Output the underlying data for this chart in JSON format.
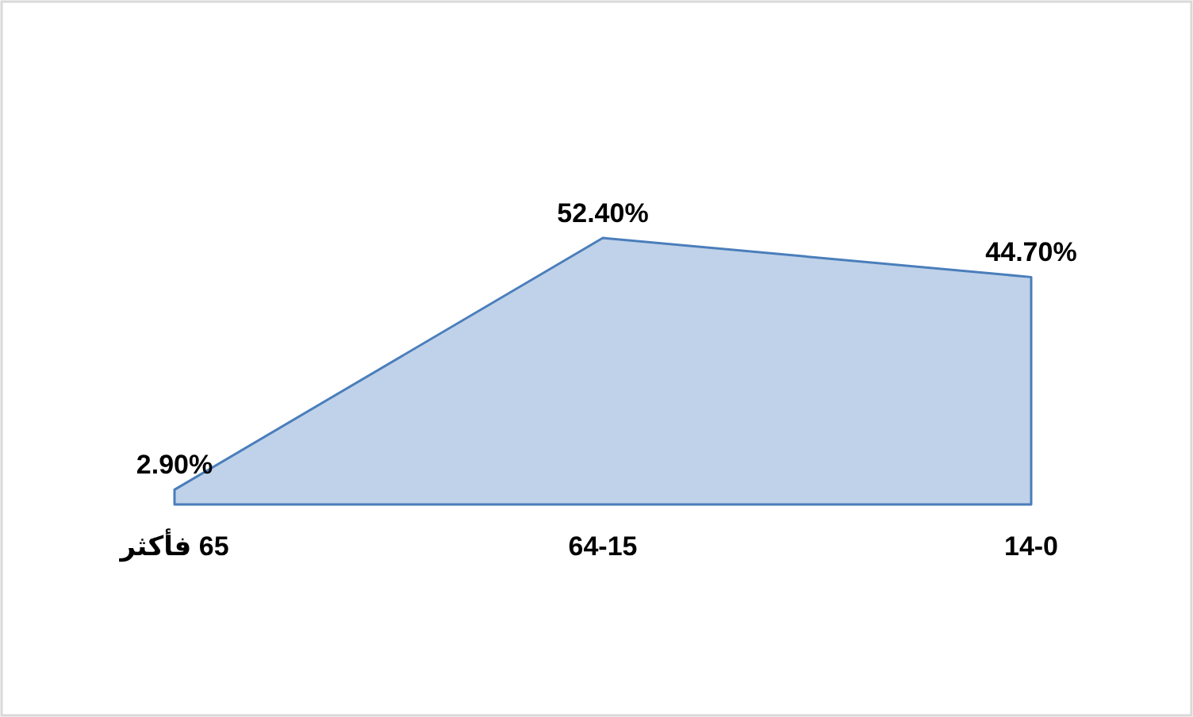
{
  "chart_data": {
    "type": "area",
    "categories": [
      "65 فأكثر",
      "64-15",
      "14-0"
    ],
    "values": [
      2.9,
      52.4,
      44.7
    ],
    "value_labels": [
      "2.90%",
      "52.40%",
      "44.70%"
    ],
    "color": "#c0d2e9"
  }
}
